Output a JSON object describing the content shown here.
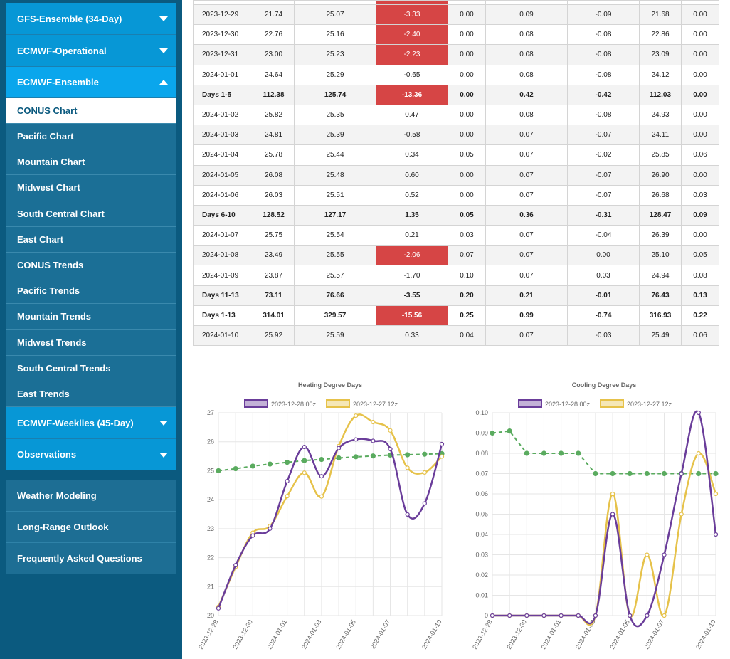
{
  "sidebar": {
    "top_menu": [
      {
        "label": "GFS-Ensemble (34-Day)",
        "state": "collapsed"
      },
      {
        "label": "ECMWF-Operational",
        "state": "collapsed"
      },
      {
        "label": "ECMWF-Ensemble",
        "state": "expanded"
      }
    ],
    "sub_items": [
      "CONUS Chart",
      "Pacific Chart",
      "Mountain Chart",
      "Midwest Chart",
      "South Central Chart",
      "East Chart",
      "CONUS Trends",
      "Pacific Trends",
      "Mountain Trends",
      "Midwest Trends",
      "South Central Trends",
      "East Trends"
    ],
    "selected_sub_item": "CONUS Chart",
    "bottom_menu": [
      {
        "label": "ECMWF-Weeklies (45-Day)",
        "state": "collapsed"
      },
      {
        "label": "Observations",
        "state": "collapsed"
      }
    ],
    "lower_links": [
      "Weather Modeling",
      "Long-Range Outlook",
      "Frequently Asked Questions"
    ]
  },
  "table": {
    "rows": [
      {
        "type": "day",
        "cells": [
          "2023-12-29",
          "21.74",
          "25.07",
          "-3.33",
          "0.00",
          "0.09",
          "-0.09",
          "21.68",
          "0.00"
        ],
        "highlight": true
      },
      {
        "type": "day",
        "cells": [
          "2023-12-30",
          "22.76",
          "25.16",
          "-2.40",
          "0.00",
          "0.08",
          "-0.08",
          "22.86",
          "0.00"
        ],
        "highlight": true
      },
      {
        "type": "day",
        "cells": [
          "2023-12-31",
          "23.00",
          "25.23",
          "-2.23",
          "0.00",
          "0.08",
          "-0.08",
          "23.09",
          "0.00"
        ],
        "highlight": true
      },
      {
        "type": "day",
        "cells": [
          "2024-01-01",
          "24.64",
          "25.29",
          "-0.65",
          "0.00",
          "0.08",
          "-0.08",
          "24.12",
          "0.00"
        ],
        "highlight": false
      },
      {
        "type": "summary",
        "cells": [
          "Days 1-5",
          "112.38",
          "125.74",
          "-13.36",
          "0.00",
          "0.42",
          "-0.42",
          "112.03",
          "0.00"
        ],
        "highlight": true
      },
      {
        "type": "day",
        "cells": [
          "2024-01-02",
          "25.82",
          "25.35",
          "0.47",
          "0.00",
          "0.08",
          "-0.08",
          "24.93",
          "0.00"
        ],
        "highlight": false
      },
      {
        "type": "day",
        "cells": [
          "2024-01-03",
          "24.81",
          "25.39",
          "-0.58",
          "0.00",
          "0.07",
          "-0.07",
          "24.11",
          "0.00"
        ],
        "highlight": false
      },
      {
        "type": "day",
        "cells": [
          "2024-01-04",
          "25.78",
          "25.44",
          "0.34",
          "0.05",
          "0.07",
          "-0.02",
          "25.85",
          "0.06"
        ],
        "highlight": false
      },
      {
        "type": "day",
        "cells": [
          "2024-01-05",
          "26.08",
          "25.48",
          "0.60",
          "0.00",
          "0.07",
          "-0.07",
          "26.90",
          "0.00"
        ],
        "highlight": false
      },
      {
        "type": "day",
        "cells": [
          "2024-01-06",
          "26.03",
          "25.51",
          "0.52",
          "0.00",
          "0.07",
          "-0.07",
          "26.68",
          "0.03"
        ],
        "highlight": false
      },
      {
        "type": "summary",
        "cells": [
          "Days 6-10",
          "128.52",
          "127.17",
          "1.35",
          "0.05",
          "0.36",
          "-0.31",
          "128.47",
          "0.09"
        ],
        "highlight": false
      },
      {
        "type": "day",
        "cells": [
          "2024-01-07",
          "25.75",
          "25.54",
          "0.21",
          "0.03",
          "0.07",
          "-0.04",
          "26.39",
          "0.00"
        ],
        "highlight": false
      },
      {
        "type": "day",
        "cells": [
          "2024-01-08",
          "23.49",
          "25.55",
          "-2.06",
          "0.07",
          "0.07",
          "0.00",
          "25.10",
          "0.05"
        ],
        "highlight": true
      },
      {
        "type": "day",
        "cells": [
          "2024-01-09",
          "23.87",
          "25.57",
          "-1.70",
          "0.10",
          "0.07",
          "0.03",
          "24.94",
          "0.08"
        ],
        "highlight": false
      },
      {
        "type": "summary",
        "cells": [
          "Days 11-13",
          "73.11",
          "76.66",
          "-3.55",
          "0.20",
          "0.21",
          "-0.01",
          "76.43",
          "0.13"
        ],
        "highlight": false
      },
      {
        "type": "summary",
        "cells": [
          "Days 1-13",
          "314.01",
          "329.57",
          "-15.56",
          "0.25",
          "0.99",
          "-0.74",
          "316.93",
          "0.22"
        ],
        "highlight": true
      },
      {
        "type": "day",
        "cells": [
          "2024-01-10",
          "25.92",
          "25.59",
          "0.33",
          "0.04",
          "0.07",
          "-0.03",
          "25.49",
          "0.06"
        ],
        "highlight": false
      }
    ]
  },
  "colors": {
    "sidebar_bg": "#0b5a7f",
    "menu_blue": "#0797d6",
    "negative_cell": "#d64545",
    "series_purple": "#6a3d9a",
    "series_gold": "#e6c24a",
    "normal_green": "#5aab5f"
  },
  "chart_data": [
    {
      "type": "line",
      "title": "Heating Degree Days",
      "x": [
        "2023-12-28",
        "2023-12-29",
        "2023-12-30",
        "2023-12-31",
        "2024-01-01",
        "2024-01-02",
        "2024-01-03",
        "2024-01-04",
        "2024-01-05",
        "2024-01-06",
        "2024-01-07",
        "2024-01-08",
        "2024-01-09",
        "2024-01-10"
      ],
      "x_tick_labels": [
        "2023-12-28",
        "2023-12-30",
        "2024-01-01",
        "2024-01-03",
        "2024-01-05",
        "2024-01-07",
        "2024-01-10"
      ],
      "ylim": [
        20,
        27
      ],
      "y_ticks": [
        "20",
        "21",
        "22",
        "23",
        "24",
        "25",
        "26",
        "27"
      ],
      "legend_position": "top",
      "series": [
        {
          "name": "2023-12-28 00z",
          "color": "#6a3d9a",
          "values": [
            20.25,
            21.74,
            22.76,
            23.0,
            24.64,
            25.82,
            24.81,
            25.78,
            26.08,
            26.03,
            25.75,
            23.49,
            23.87,
            25.92
          ]
        },
        {
          "name": "2023-12-27 12z",
          "color": "#e6c24a",
          "values": [
            20.3,
            21.68,
            22.86,
            23.09,
            24.12,
            24.93,
            24.11,
            25.85,
            26.9,
            26.68,
            26.39,
            25.1,
            24.94,
            25.49
          ]
        },
        {
          "values": [
            25.0,
            25.07,
            25.16,
            25.23,
            25.29,
            25.35,
            25.39,
            25.44,
            25.48,
            25.51,
            25.54,
            25.55,
            25.57,
            25.59
          ],
          "color": "#5aab5f",
          "dashed": true
        }
      ]
    },
    {
      "type": "line",
      "title": "Cooling Degree Days",
      "x": [
        "2023-12-28",
        "2023-12-29",
        "2023-12-30",
        "2023-12-31",
        "2024-01-01",
        "2024-01-02",
        "2024-01-03",
        "2024-01-04",
        "2024-01-05",
        "2024-01-06",
        "2024-01-07",
        "2024-01-08",
        "2024-01-09",
        "2024-01-10"
      ],
      "x_tick_labels": [
        "2023-12-28",
        "2023-12-30",
        "2024-01-01",
        "2024-01-03",
        "2024-01-05",
        "2024-01-07",
        "2024-01-10"
      ],
      "ylim": [
        0,
        0.1
      ],
      "y_ticks": [
        "0",
        "0.01",
        "0.02",
        "0.03",
        "0.04",
        "0.05",
        "0.06",
        "0.07",
        "0.08",
        "0.09",
        "0.10"
      ],
      "legend_position": "top",
      "series": [
        {
          "name": "2023-12-28 00z",
          "color": "#6a3d9a",
          "values": [
            0,
            0,
            0,
            0,
            0,
            0,
            0,
            0.05,
            0,
            0,
            0.03,
            0.07,
            0.1,
            0.04
          ]
        },
        {
          "name": "2023-12-27 12z",
          "color": "#e6c24a",
          "values": [
            0,
            0,
            0,
            0,
            0,
            0,
            0,
            0.06,
            0,
            0.03,
            0,
            0.05,
            0.08,
            0.06
          ]
        },
        {
          "values": [
            0.09,
            0.091,
            0.08,
            0.08,
            0.08,
            0.08,
            0.07,
            0.07,
            0.07,
            0.07,
            0.07,
            0.07,
            0.07,
            0.07
          ],
          "color": "#5aab5f",
          "dashed": true
        }
      ]
    }
  ]
}
